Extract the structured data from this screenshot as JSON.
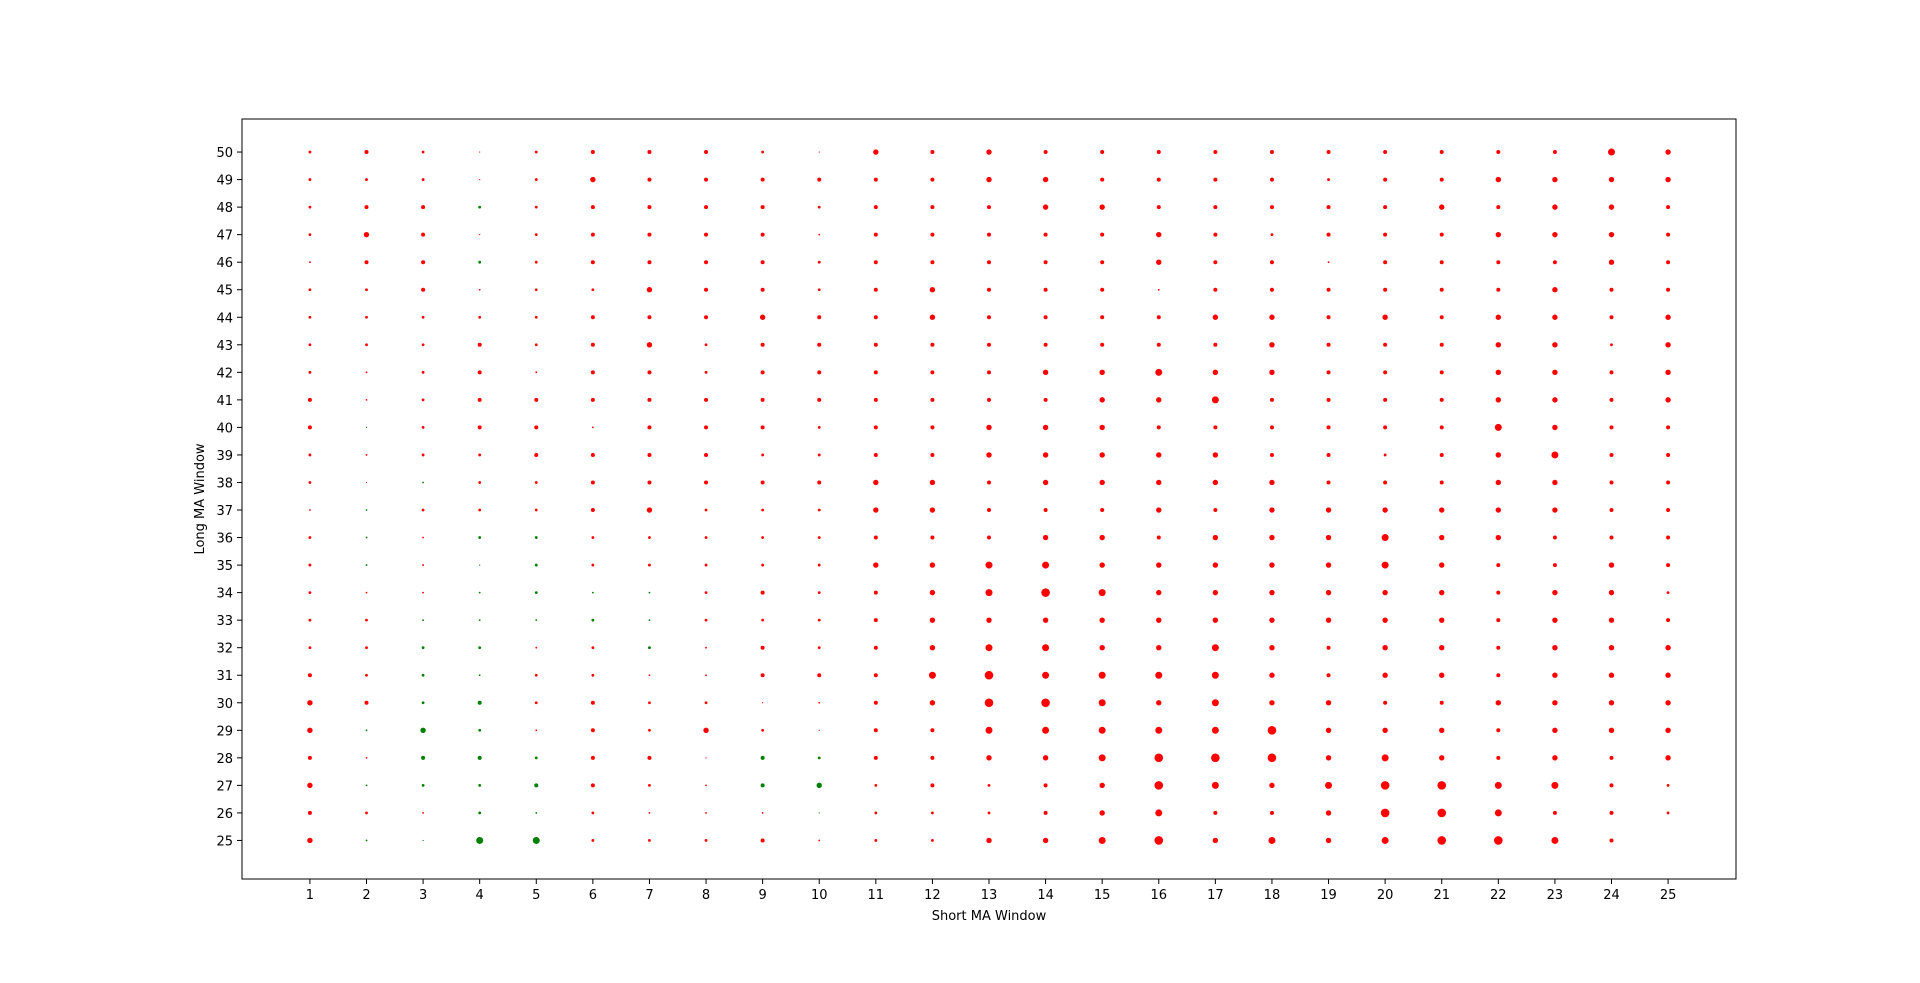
{
  "chart_data": {
    "type": "scatter",
    "title": "",
    "xlabel": "Short MA Window",
    "ylabel": "Long MA Window",
    "x_ticks": [
      1,
      2,
      3,
      4,
      5,
      6,
      7,
      8,
      9,
      10,
      11,
      12,
      13,
      14,
      15,
      16,
      17,
      18,
      19,
      20,
      21,
      22,
      23,
      24,
      25
    ],
    "y_ticks": [
      25,
      26,
      27,
      28,
      29,
      30,
      31,
      32,
      33,
      34,
      35,
      36,
      37,
      38,
      39,
      40,
      41,
      42,
      43,
      44,
      45,
      46,
      47,
      48,
      49,
      50
    ],
    "xlim": [
      -0.2,
      26.2
    ],
    "ylim": [
      23.6,
      51.2
    ],
    "grid": false,
    "legend": "none",
    "colors": {
      "positive": "#008000",
      "negative": "#ff0000"
    },
    "encoding_note": "marker size = magnitude; red = negative, green = positive",
    "magnitude_grid_rows_by_long_window_25_to_50": [
      "5 2 1 6 6 3 3 3 4 2 3 3 5 5 6 7 5 6 5 6 7 7 6 4 0",
      "4 3 2 3 2 3 2 2 2 1 3 3 3 4 5 6 4 4 5 7 7 6 4 4 3",
      "5 2 3 3 4 4 3 2 4 5 3 4 3 4 5 7 6 5 6 7 7 6 6 4 3",
      "4 2 4 4 3 4 4 1 4 3 4 4 5 5 6 7 7 7 5 6 5 4 5 4 5",
      "5 2 5 3 2 4 3 5 3 1 4 4 6 6 6 6 6 7 5 5 5 4 5 5 5",
      "5 4 3 4 3 4 3 3 1 2 4 5 7 7 6 5 6 5 5 4 4 5 5 5 5",
      "4 3 3 2 3 3 2 2 4 4 4 6 7 6 6 6 6 5 4 5 5 4 5 5 5",
      "3 3 3 3 2 3 3 2 4 3 4 5 6 6 5 5 6 5 4 5 5 4 5 5 5",
      "3 3 2 2 2 3 2 3 3 3 4 5 5 5 5 5 5 5 5 5 5 4 5 5 4",
      "3 2 2 2 3 2 2 3 4 3 4 5 6 7 6 5 5 5 5 5 5 4 5 5 3",
      "3 2 2 1 3 3 3 3 3 3 5 5 6 6 5 5 5 5 5 6 5 4 4 5 4",
      "3 2 2 3 3 3 3 3 3 3 4 4 4 5 5 4 5 5 5 6 5 5 4 4 4",
      "2 2 3 3 3 4 5 3 3 3 5 5 4 4 4 5 4 5 5 5 5 5 5 4 4",
      "3 1 2 3 3 4 4 4 4 4 5 5 4 5 5 5 5 5 4 4 4 5 5 4 4",
      "3 2 3 3 4 4 4 4 3 3 4 4 5 5 5 5 5 4 4 3 4 5 6 4 4",
      "4 1 3 4 4 2 4 4 4 3 4 4 5 5 5 4 4 4 4 4 4 6 5 4 4",
      "4 2 3 4 4 4 4 4 4 4 4 4 4 4 5 5 6 4 4 4 4 5 5 4 5",
      "3 2 3 4 2 4 4 3 4 4 4 4 4 5 5 6 5 5 4 4 4 5 5 4 5",
      "3 3 3 4 3 4 5 3 4 4 4 4 4 4 4 4 4 5 4 4 4 5 5 3 5",
      "3 3 3 3 3 4 4 4 5 4 4 5 4 4 4 4 5 5 4 5 4 5 5 4 5",
      "3 3 4 2 3 3 5 4 4 3 4 5 4 4 4 2 4 4 4 4 4 4 5 4 4",
      "2 4 4 3 3 4 4 4 4 3 4 4 4 4 4 5 4 4 2 4 4 4 4 5 4",
      "3 5 4 1 3 4 4 4 4 2 4 4 4 4 4 5 4 3 4 4 4 5 5 5 4",
      "3 4 4 3 3 4 4 4 4 3 4 4 4 5 5 4 4 4 4 4 5 4 5 5 4",
      "3 3 3 1 3 5 4 4 4 4 4 4 5 5 4 4 4 4 3 4 4 5 5 5 5",
      "3 4 3 1 3 4 4 4 3 1 5 4 5 4 4 4 4 4 4 4 4 4 4 6 5"
    ],
    "sign_grid_rows_by_long_window_25_to_50": [
      "- + + + + - - - - - - - - - - - - - - - - - - - +",
      "- - - + + - - - - + - - - - - - - - - - - - - - -",
      "- + + + + - - - + + - - - - - - - - - - - - - - -",
      "- - + + + - - - + + - - - - - - - - - - - - - - -",
      "- + + + - - - - - - - - - - - - - - - - - - - - -",
      "- - + + - - - - - - - - - - - - - - - - - - - - -",
      "- - + + - - - - - - - - - - - - - - - - - - - - -",
      "- - + + - - + - - - - - - - - - - - - - - - - - -",
      "- - + + + + + - - - - - - - - - - - - - - - - - -",
      "- - - + + + + - - - - - - - - - - - - - - - - - -",
      "- + - + + - - - - - - - - - - - - - - - - - - - -",
      "- + - + + - - - - - - - - - - - - - - - - - - - -",
      "- + - - - - - - - - - - - - - - - - - - - - - - -",
      "- - + - - - - - - - - - - - - - - - - - - - - - -",
      "- - - - - - - - - - - - - - - - - - - - - - - - -",
      "- + - - - - - - - - - - - - - - - - - - - - - - -",
      "- - - - - - - - - - - - - - - - - - - - - - - - -",
      "- - - - - - - - - - - - - - - - - - - - - - - - -",
      "- - - - - - - - - - - - - - - - - - - - - - - - -",
      "- - - - - - - - - - - - - - - - - - - - - - - - -",
      "- - - - - - - - - - - - - - - - - - - - - - - - -",
      "- - - + - - - - - - - - - - - - - - - - - - - - -",
      "- - - - - - - - - - - - - - - - - - - - - - - - -",
      "- - - + - - - - - - - - - - - - - - - - - - - - -",
      "- - - - - - - - - - - - - - - - - - - - - - - - -",
      "- - - - - - - - - - - - - - - - - - - - - - - - -"
    ]
  }
}
